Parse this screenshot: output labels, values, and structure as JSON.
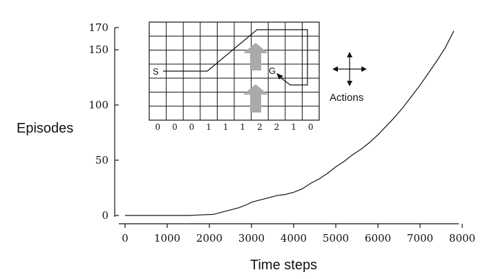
{
  "chart_data": {
    "type": "line",
    "xlabel": "Time steps",
    "ylabel": "Episodes",
    "xlim": [
      0,
      8000
    ],
    "ylim": [
      0,
      170
    ],
    "xticks": [
      "0",
      "1000",
      "2000",
      "3000",
      "4000",
      "5000",
      "6000",
      "7000",
      "8000"
    ],
    "yticks": [
      "0",
      "50",
      "100",
      "150",
      "170"
    ],
    "grid": false,
    "series": [
      {
        "x": [
          0,
          1500,
          1800,
          2100,
          2400,
          2700,
          2900,
          3000,
          3200,
          3400,
          3600,
          3800,
          4000,
          4200,
          4400,
          4600,
          4800,
          5000,
          5200,
          5400,
          5600,
          5800,
          6000,
          6200,
          6400,
          6600,
          6800,
          7000,
          7200,
          7400,
          7600,
          7800
        ],
        "y": [
          0,
          0,
          0.5,
          1,
          4,
          7,
          10,
          12,
          14,
          16,
          18,
          19,
          21,
          24,
          29,
          33,
          38,
          44,
          49,
          55,
          60,
          66,
          73,
          81,
          89,
          98,
          108,
          118,
          129,
          140,
          152,
          167
        ]
      }
    ]
  },
  "inset": {
    "start_label": "S",
    "goal_label": "G",
    "column_labels": [
      "0",
      "0",
      "0",
      "1",
      "1",
      "1",
      "2",
      "2",
      "1",
      "0"
    ],
    "actions_label": "Actions",
    "arrow_color": "#aaaaaa"
  }
}
